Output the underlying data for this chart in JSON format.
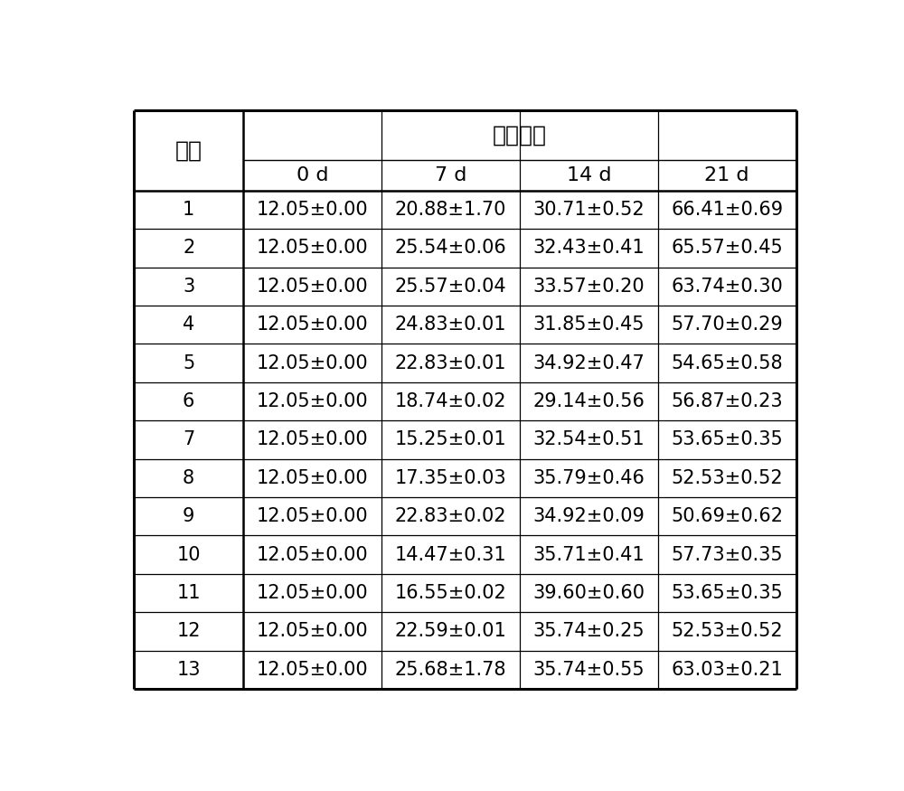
{
  "header_main": "腕制时间",
  "col_group_label": "组别",
  "sub_headers": [
    "0 d",
    "7 d",
    "14 d",
    "21 d"
  ],
  "rows": [
    [
      "1",
      "12.05±0.00",
      "20.88±1.70",
      "30.71±0.52",
      "66.41±0.69"
    ],
    [
      "2",
      "12.05±0.00",
      "25.54±0.06",
      "32.43±0.41",
      "65.57±0.45"
    ],
    [
      "3",
      "12.05±0.00",
      "25.57±0.04",
      "33.57±0.20",
      "63.74±0.30"
    ],
    [
      "4",
      "12.05±0.00",
      "24.83±0.01",
      "31.85±0.45",
      "57.70±0.29"
    ],
    [
      "5",
      "12.05±0.00",
      "22.83±0.01",
      "34.92±0.47",
      "54.65±0.58"
    ],
    [
      "6",
      "12.05±0.00",
      "18.74±0.02",
      "29.14±0.56",
      "56.87±0.23"
    ],
    [
      "7",
      "12.05±0.00",
      "15.25±0.01",
      "32.54±0.51",
      "53.65±0.35"
    ],
    [
      "8",
      "12.05±0.00",
      "17.35±0.03",
      "35.79±0.46",
      "52.53±0.52"
    ],
    [
      "9",
      "12.05±0.00",
      "22.83±0.02",
      "34.92±0.09",
      "50.69±0.62"
    ],
    [
      "10",
      "12.05±0.00",
      "14.47±0.31",
      "35.71±0.41",
      "57.73±0.35"
    ],
    [
      "11",
      "12.05±0.00",
      "16.55±0.02",
      "39.60±0.60",
      "53.65±0.35"
    ],
    [
      "12",
      "12.05±0.00",
      "22.59±0.01",
      "35.74±0.25",
      "52.53±0.52"
    ],
    [
      "13",
      "12.05±0.00",
      "25.68±1.78",
      "35.74±0.55",
      "63.03±0.21"
    ]
  ],
  "bg_color": "#ffffff",
  "line_color": "#000000",
  "text_color": "#000000",
  "font_size_header": 18,
  "font_size_subheader": 16,
  "font_size_data": 15,
  "font_size_group": 18
}
